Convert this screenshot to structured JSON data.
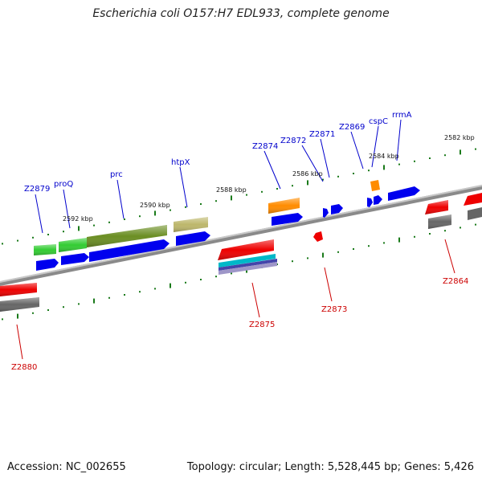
{
  "title": "Escherichia coli O157:H7 EDL933, complete genome",
  "footer": {
    "accession": "Accession: NC_002655",
    "summary": "Topology: circular; Length: 5,528,445 bp; Genes: 5,426"
  },
  "colors": {
    "forward_label": "#0000cc",
    "reverse_label": "#cc0000",
    "tick": "#1a7a1a",
    "backbone": "#888888",
    "cds": "#0000ee",
    "gene_red": "#ee0000",
    "gene_green": "#33cc33",
    "gene_olive": "#6b8e23",
    "gene_khaki": "#bdb76b",
    "gene_orange": "#ff8c00",
    "gene_gray": "#666666",
    "gene_cyan": "#00b8c8",
    "gene_purple": "#7b68aa"
  },
  "tick_labels": [
    "2592 kbp",
    "2590 kbp",
    "2588 kbp",
    "2586 kbp",
    "2584 kbp",
    "2582 kbp"
  ],
  "forward_labels": [
    "Z2879",
    "proQ",
    "prc",
    "htpX",
    "Z2874",
    "Z2872",
    "Z2871",
    "Z2869",
    "cspC",
    "rrmA"
  ],
  "reverse_labels": [
    "Z2880",
    "Z2875",
    "Z2873",
    "Z2864"
  ]
}
